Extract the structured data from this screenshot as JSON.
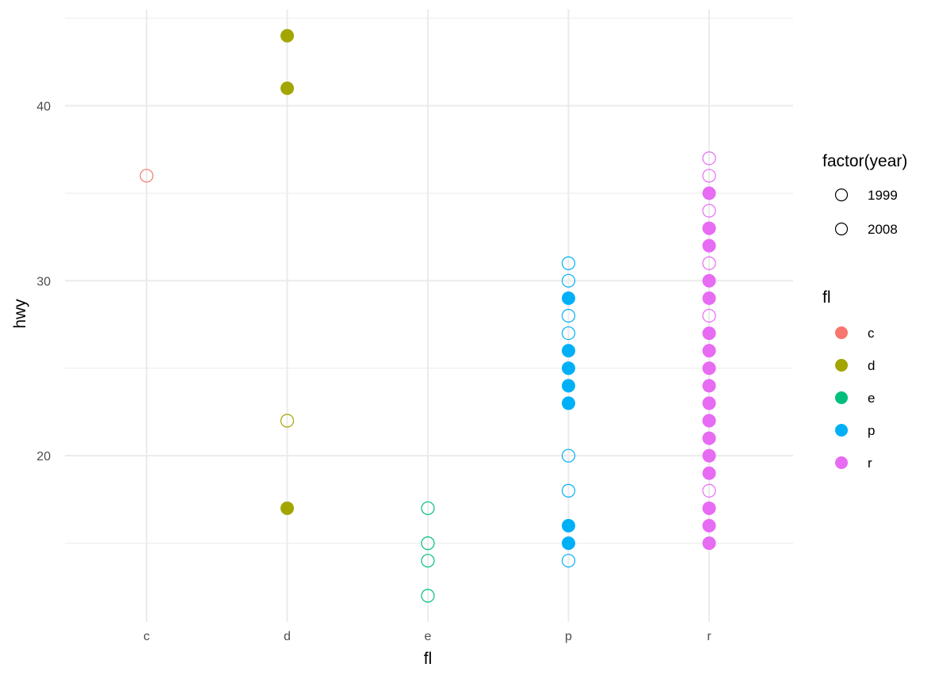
{
  "chart_data": {
    "type": "scatter",
    "xlabel": "fl",
    "ylabel": "hwy",
    "categories": [
      "c",
      "d",
      "e",
      "p",
      "r"
    ],
    "ylim": [
      10.5,
      45.5
    ],
    "yticks": [
      20,
      30,
      40
    ],
    "grid": true,
    "legend_position": "right",
    "colors": {
      "c": "#F8766D",
      "d": "#A3A500",
      "e": "#00BF7D",
      "p": "#00B0F6",
      "r": "#E76BF3"
    },
    "legends": {
      "year": {
        "title": "factor(year)",
        "entries": [
          {
            "label": "1999",
            "shape": "open-circle"
          },
          {
            "label": "2008",
            "shape": "open-circle"
          }
        ]
      },
      "fl": {
        "title": "fl",
        "entries": [
          {
            "label": "c",
            "shape": "filled-circle"
          },
          {
            "label": "d",
            "shape": "filled-circle"
          },
          {
            "label": "e",
            "shape": "filled-circle"
          },
          {
            "label": "p",
            "shape": "filled-circle"
          },
          {
            "label": "r",
            "shape": "filled-circle"
          }
        ]
      }
    },
    "series": [
      {
        "fl": "c",
        "points": [
          {
            "y": 36,
            "filled": false
          }
        ]
      },
      {
        "fl": "d",
        "points": [
          {
            "y": 44,
            "filled": true
          },
          {
            "y": 41,
            "filled": true
          },
          {
            "y": 22,
            "filled": false
          },
          {
            "y": 17,
            "filled": true
          }
        ]
      },
      {
        "fl": "e",
        "points": [
          {
            "y": 17,
            "filled": false
          },
          {
            "y": 15,
            "filled": false
          },
          {
            "y": 14,
            "filled": false
          },
          {
            "y": 12,
            "filled": false
          }
        ]
      },
      {
        "fl": "p",
        "points": [
          {
            "y": 31,
            "filled": false
          },
          {
            "y": 30,
            "filled": false
          },
          {
            "y": 29,
            "filled": true
          },
          {
            "y": 28,
            "filled": false
          },
          {
            "y": 27,
            "filled": false
          },
          {
            "y": 26,
            "filled": true
          },
          {
            "y": 25,
            "filled": true
          },
          {
            "y": 24,
            "filled": true
          },
          {
            "y": 23,
            "filled": true
          },
          {
            "y": 20,
            "filled": false
          },
          {
            "y": 18,
            "filled": false
          },
          {
            "y": 16,
            "filled": true
          },
          {
            "y": 15,
            "filled": true
          },
          {
            "y": 14,
            "filled": false
          }
        ]
      },
      {
        "fl": "r",
        "points": [
          {
            "y": 37,
            "filled": false
          },
          {
            "y": 36,
            "filled": false
          },
          {
            "y": 35,
            "filled": true
          },
          {
            "y": 34,
            "filled": false
          },
          {
            "y": 33,
            "filled": true
          },
          {
            "y": 32,
            "filled": true
          },
          {
            "y": 31,
            "filled": false
          },
          {
            "y": 30,
            "filled": true
          },
          {
            "y": 29,
            "filled": true
          },
          {
            "y": 28,
            "filled": false
          },
          {
            "y": 27,
            "filled": true
          },
          {
            "y": 26,
            "filled": true
          },
          {
            "y": 25,
            "filled": true
          },
          {
            "y": 24,
            "filled": true
          },
          {
            "y": 23,
            "filled": true
          },
          {
            "y": 22,
            "filled": true
          },
          {
            "y": 21,
            "filled": true
          },
          {
            "y": 20,
            "filled": true
          },
          {
            "y": 19,
            "filled": true
          },
          {
            "y": 18,
            "filled": false
          },
          {
            "y": 17,
            "filled": true
          },
          {
            "y": 16,
            "filled": true
          },
          {
            "y": 15,
            "filled": true
          }
        ]
      }
    ]
  }
}
